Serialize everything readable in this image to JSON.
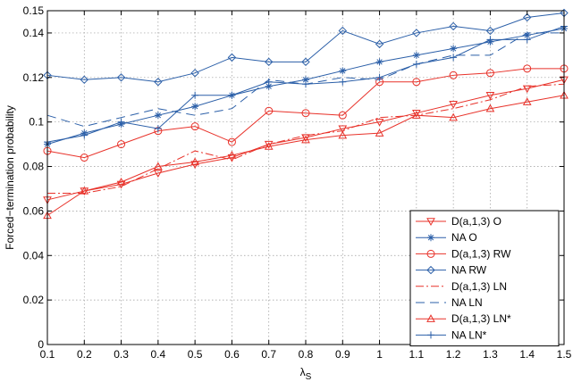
{
  "chart_data": {
    "type": "line",
    "title": "",
    "xlabel": "λ",
    "xlabel_sub": "S",
    "ylabel": "Forced−termination probability",
    "xlim": [
      0.1,
      1.5
    ],
    "ylim": [
      0,
      0.15
    ],
    "grid": true,
    "legend_position": "bottom-right",
    "x_ticks": [
      0.1,
      0.2,
      0.3,
      0.4,
      0.5,
      0.6,
      0.7,
      0.8,
      0.9,
      1.0,
      1.1,
      1.2,
      1.3,
      1.4,
      1.5
    ],
    "x_tick_labels": [
      "0.1",
      "0.2",
      "0.3",
      "0.4",
      "0.5",
      "0.6",
      "0.7",
      "0.8",
      "0.9",
      "1",
      "1.1",
      "1.2",
      "1.3",
      "1.4",
      "1.5"
    ],
    "y_ticks": [
      0,
      0.02,
      0.04,
      0.06,
      0.08,
      0.1,
      0.12,
      0.14,
      0.15
    ],
    "y_tick_labels": [
      "0",
      "0.02",
      "0.04",
      "0.06",
      "0.08",
      "0.1",
      "0.12",
      "0.14",
      "0.15"
    ],
    "x": [
      0.1,
      0.2,
      0.3,
      0.4,
      0.5,
      0.6,
      0.7,
      0.8,
      0.9,
      1.0,
      1.1,
      1.2,
      1.3,
      1.4,
      1.5
    ],
    "series": [
      {
        "name": "D(a,1,3) O",
        "color": "#e8322a",
        "dash": "",
        "marker": "triangle-down",
        "values": [
          0.065,
          0.069,
          0.072,
          0.077,
          0.081,
          0.084,
          0.09,
          0.093,
          0.097,
          0.1,
          0.104,
          0.108,
          0.112,
          0.115,
          0.119
        ]
      },
      {
        "name": "NA O",
        "color": "#2b5fa8",
        "dash": "",
        "marker": "star",
        "values": [
          0.09,
          0.095,
          0.099,
          0.103,
          0.107,
          0.112,
          0.116,
          0.119,
          0.123,
          0.127,
          0.13,
          0.133,
          0.136,
          0.139,
          0.142
        ]
      },
      {
        "name": "D(a,1,3) RW",
        "color": "#e8322a",
        "dash": "",
        "marker": "circle",
        "values": [
          0.087,
          0.084,
          0.09,
          0.096,
          0.098,
          0.091,
          0.105,
          0.104,
          0.103,
          0.118,
          0.118,
          0.121,
          0.122,
          0.124,
          0.124
        ]
      },
      {
        "name": "NA RW",
        "color": "#2b5fa8",
        "dash": "",
        "marker": "diamond",
        "values": [
          0.121,
          0.119,
          0.12,
          0.118,
          0.122,
          0.129,
          0.127,
          0.127,
          0.141,
          0.135,
          0.14,
          0.143,
          0.141,
          0.147,
          0.149
        ]
      },
      {
        "name": "D(a,1,3) LN",
        "color": "#e8322a",
        "dash": "9 3 2 3",
        "marker": "",
        "values": [
          0.068,
          0.068,
          0.071,
          0.079,
          0.087,
          0.083,
          0.09,
          0.094,
          0.096,
          0.102,
          0.103,
          0.106,
          0.11,
          0.116,
          0.117
        ]
      },
      {
        "name": "NA LN",
        "color": "#2b5fa8",
        "dash": "10 6",
        "marker": "",
        "values": [
          0.103,
          0.098,
          0.102,
          0.106,
          0.103,
          0.106,
          0.119,
          0.117,
          0.12,
          0.119,
          0.126,
          0.13,
          0.13,
          0.14,
          0.14
        ]
      },
      {
        "name": "D(a,1,3) LN*",
        "color": "#e8322a",
        "dash": "",
        "marker": "triangle-up",
        "values": [
          0.058,
          0.069,
          0.073,
          0.08,
          0.082,
          0.085,
          0.089,
          0.092,
          0.094,
          0.095,
          0.103,
          0.102,
          0.106,
          0.109,
          0.112
        ]
      },
      {
        "name": "NA LN*",
        "color": "#2b5fa8",
        "dash": "",
        "marker": "plus",
        "values": [
          0.091,
          0.094,
          0.1,
          0.097,
          0.112,
          0.112,
          0.118,
          0.117,
          0.118,
          0.12,
          0.126,
          0.129,
          0.137,
          0.137,
          0.143
        ]
      }
    ]
  }
}
